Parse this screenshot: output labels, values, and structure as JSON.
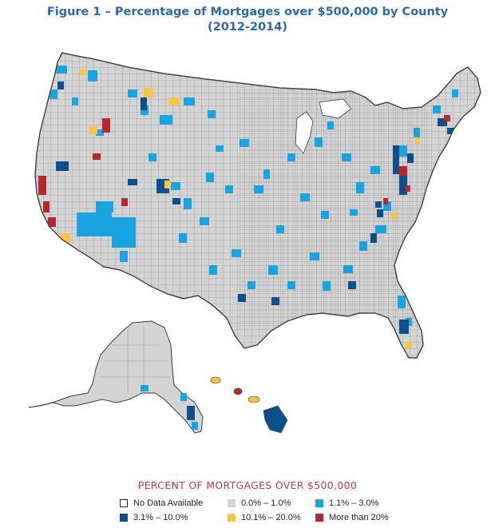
{
  "title_line1": "Figure 1 – Percentage of Mortgages over $500,000 by County",
  "title_line2": "(2012-2014)",
  "legend_title": "PERCENT OF MORTGAGES OVER $500,000",
  "legend": [
    {
      "label": "No Data Available",
      "color": "#ffffff",
      "border": "#222222"
    },
    {
      "label": "0.0% – 1.0%",
      "color": "#d4d4d4",
      "border": "#d4d4d4"
    },
    {
      "label": "1.1% – 3.0%",
      "color": "#1aa4df",
      "border": "#1aa4df"
    },
    {
      "label": "3.1% – 10.0%",
      "color": "#0d4f8b",
      "border": "#0d4f8b"
    },
    {
      "label": "10.1% – 20.0%",
      "color": "#f7c544",
      "border": "#f7c544"
    },
    {
      "label": "More than 20%",
      "color": "#b8272e",
      "border": "#b8272e"
    }
  ],
  "colors": {
    "no_data": "#ffffff",
    "low": "#d4d4d4",
    "light_blue": "#1aa4df",
    "dark_blue": "#0d4f8b",
    "yellow": "#f7c544",
    "red": "#b8272e",
    "title": "#2a6aa8",
    "legend_title": "#c43a3f"
  }
}
